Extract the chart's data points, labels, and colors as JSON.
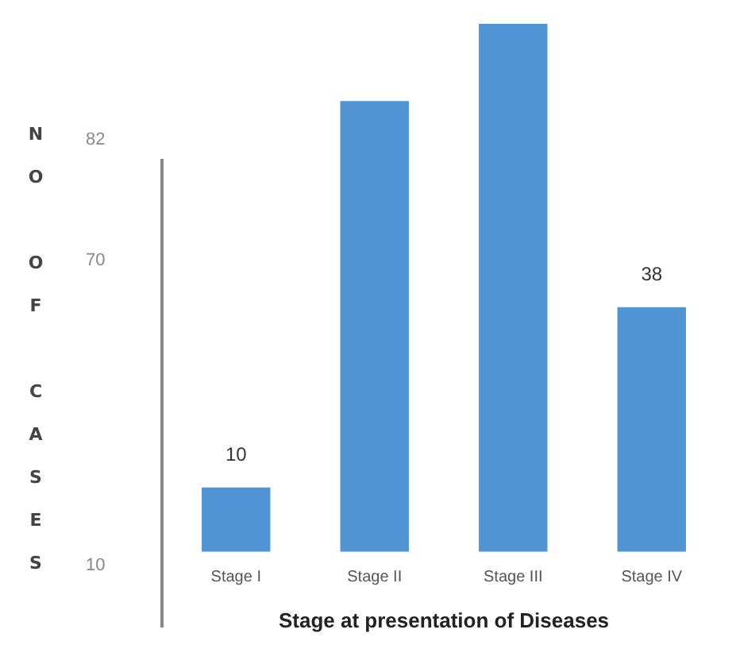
{
  "chart_data": {
    "type": "bar",
    "xlabel": "Stage at presentation of Diseases",
    "categories": [
      "Stage I",
      "Stage II",
      "Stage III",
      "Stage IV"
    ],
    "values": [
      10,
      70,
      82,
      38
    ],
    "color": "#5094d6",
    "ylim": [
      0,
      82
    ],
    "value_labels": [
      "10",
      null,
      null,
      "38"
    ],
    "annotations": [
      "NO OF CASES",
      "82",
      "70",
      "10"
    ],
    "grid": false,
    "legend": false
  }
}
